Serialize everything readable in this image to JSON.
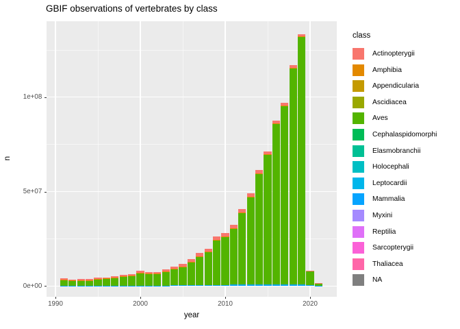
{
  "title": "GBIF observations of vertebrates by class",
  "axes": {
    "x": {
      "label": "year",
      "tick_labels": [
        "1990",
        "2000",
        "2010",
        "2020"
      ]
    },
    "y": {
      "label": "n",
      "tick_labels": [
        "0e+00",
        "5e+07",
        "1e+08"
      ]
    }
  },
  "legend": {
    "title": "class",
    "entries": [
      {
        "label": "Actinopterygii",
        "color": "#F8766D"
      },
      {
        "label": "Amphibia",
        "color": "#E38900"
      },
      {
        "label": "Appendicularia",
        "color": "#C49A00"
      },
      {
        "label": "Ascidiacea",
        "color": "#99A800"
      },
      {
        "label": "Aves",
        "color": "#53B400"
      },
      {
        "label": "Cephalaspidomorphi",
        "color": "#00BC56"
      },
      {
        "label": "Elasmobranchii",
        "color": "#00C094"
      },
      {
        "label": "Holocephali",
        "color": "#00BFC4"
      },
      {
        "label": "Leptocardii",
        "color": "#00B6EB"
      },
      {
        "label": "Mammalia",
        "color": "#06A4FF"
      },
      {
        "label": "Myxini",
        "color": "#A58AFF"
      },
      {
        "label": "Reptilia",
        "color": "#DF70F8"
      },
      {
        "label": "Sarcopterygii",
        "color": "#FB61D7"
      },
      {
        "label": "Thaliacea",
        "color": "#FF66A8"
      },
      {
        "label": "NA",
        "color": "#7F7F7F"
      }
    ]
  },
  "chart_data": {
    "type": "bar",
    "stacked": true,
    "title": "GBIF observations of vertebrates by class",
    "xlabel": "year",
    "ylabel": "n",
    "x": [
      1991,
      1992,
      1993,
      1994,
      1995,
      1996,
      1997,
      1998,
      1999,
      2000,
      2001,
      2002,
      2003,
      2004,
      2005,
      2006,
      2007,
      2008,
      2009,
      2010,
      2011,
      2012,
      2013,
      2014,
      2015,
      2016,
      2017,
      2018,
      2019,
      2020,
      2021
    ],
    "series": [
      {
        "name": "Mammalia",
        "color": "#06A4FF",
        "values": [
          50000,
          50000,
          50000,
          50000,
          50000,
          50000,
          100000,
          100000,
          150000,
          200000,
          200000,
          200000,
          250000,
          300000,
          350000,
          400000,
          450000,
          500000,
          550000,
          600000,
          700000,
          800000,
          900000,
          900000,
          1000000,
          1000000,
          1000000,
          1000000,
          900000,
          300000,
          50000
        ]
      },
      {
        "name": "Aves",
        "color": "#53B400",
        "values": [
          3400000,
          2700000,
          2950000,
          2950000,
          3600000,
          3900000,
          4300000,
          4900000,
          5300000,
          6750000,
          6150000,
          6150000,
          7350000,
          8800000,
          9850000,
          12250000,
          15150000,
          17300000,
          23500000,
          25350000,
          29500000,
          37700000,
          45950000,
          58350000,
          68300000,
          84700000,
          94100000,
          114200000,
          131100000,
          7700000,
          1510000
        ]
      },
      {
        "name": "Amphibia",
        "color": "#E38900",
        "values": [
          100000,
          100000,
          100000,
          100000,
          100000,
          100000,
          100000,
          100000,
          150000,
          150000,
          150000,
          150000,
          200000,
          200000,
          200000,
          250000,
          300000,
          300000,
          350000,
          350000,
          400000,
          400000,
          450000,
          450000,
          500000,
          500000,
          500000,
          500000,
          400000,
          50000,
          10000
        ]
      },
      {
        "name": "Actinopterygii",
        "color": "#F8766D",
        "values": [
          550000,
          450000,
          500000,
          500000,
          550000,
          550000,
          600000,
          700000,
          800000,
          1000000,
          900000,
          900000,
          1000000,
          1100000,
          1200000,
          1300000,
          1500000,
          1500000,
          1700000,
          1700000,
          1800000,
          1900000,
          1900000,
          1600000,
          1500000,
          1500000,
          1400000,
          1300000,
          1100000,
          150000,
          30000
        ]
      }
    ],
    "totals": [
      4100000,
      3300000,
      3600000,
      3600000,
      4300000,
      4600000,
      5100000,
      5800000,
      6400000,
      8100000,
      7400000,
      7400000,
      8800000,
      10400000,
      11600000,
      14200000,
      17400000,
      19600000,
      26100000,
      28000000,
      32400000,
      40800000,
      49200000,
      61300000,
      71300000,
      87700000,
      97000000,
      117000000,
      133500000,
      8200000,
      1600000
    ],
    "x_major_ticks": [
      1990,
      2000,
      2010,
      2020
    ],
    "x_minor_ticks": [
      1995,
      2005,
      2015
    ],
    "y_major_ticks": [
      0,
      50000000,
      100000000
    ],
    "y_minor_ticks": [
      25000000,
      75000000,
      125000000
    ],
    "ylim": [
      0,
      140000000
    ],
    "xlim": [
      1988.9,
      2023.2
    ],
    "grid": true,
    "legend_position": "right",
    "panel_background": "#EBEBEB",
    "grid_color": "#FFFFFF"
  }
}
